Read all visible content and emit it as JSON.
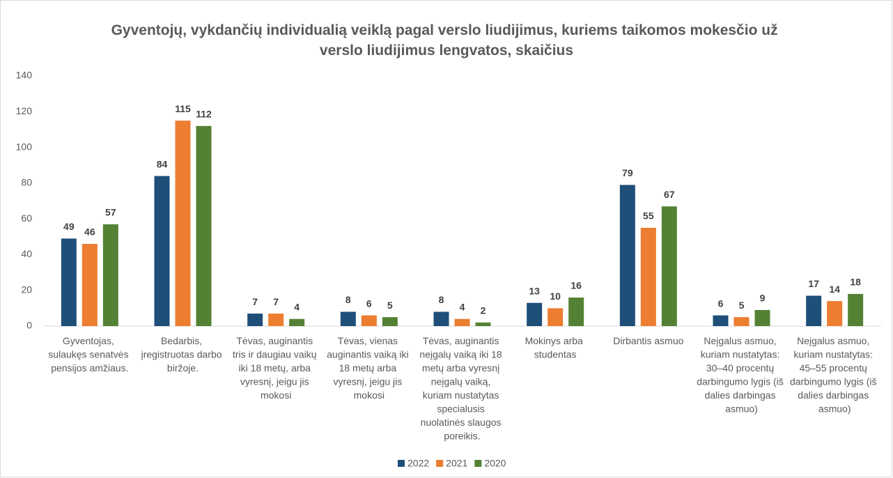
{
  "chart_data": {
    "type": "bar",
    "title": "Gyventojų, vykdančių individualią veiklą pagal verslo liudijimus, kuriems taikomos mokesčio už verslo liudijimus lengvatos, skaičius",
    "categories": [
      "Gyventojas, sulaukęs senatvės pensijos amžiaus.",
      "Bedarbis, įregistruotas darbo biržoje.",
      "Tėvas, auginantis tris ir daugiau vaikų iki 18 metų, arba vyresnį, jeigu jis mokosi",
      "Tėvas, vienas auginantis vaiką iki 18 metų arba vyresnį, jeigu jis mokosi",
      "Tėvas, auginantis neįgalų vaiką iki 18 metų arba vyresnį neįgalų vaiką, kuriam nustatytas specialusis nuolatinės slaugos poreikis.",
      "Mokinys arba studentas",
      "Dirbantis asmuo",
      "Neįgalus asmuo, kuriam nustatytas: 30–40 procentų darbingumo lygis (iš dalies darbingas asmuo)",
      "Neįgalus asmuo, kuriam nustatytas: 45–55 procentų darbingumo lygis (iš dalies darbingas asmuo)"
    ],
    "series": [
      {
        "name": "2022",
        "color": "#1f4e79",
        "values": [
          49,
          84,
          7,
          8,
          8,
          13,
          79,
          6,
          17
        ]
      },
      {
        "name": "2021",
        "color": "#ed7d31",
        "values": [
          46,
          115,
          7,
          6,
          4,
          10,
          55,
          5,
          14
        ]
      },
      {
        "name": "2020",
        "color": "#548235",
        "values": [
          57,
          112,
          4,
          5,
          2,
          16,
          67,
          9,
          18
        ]
      }
    ],
    "ylim": [
      0,
      140
    ],
    "yticks": [
      0,
      20,
      40,
      60,
      80,
      100,
      120,
      140
    ],
    "grid": false,
    "legend": "bottom"
  }
}
